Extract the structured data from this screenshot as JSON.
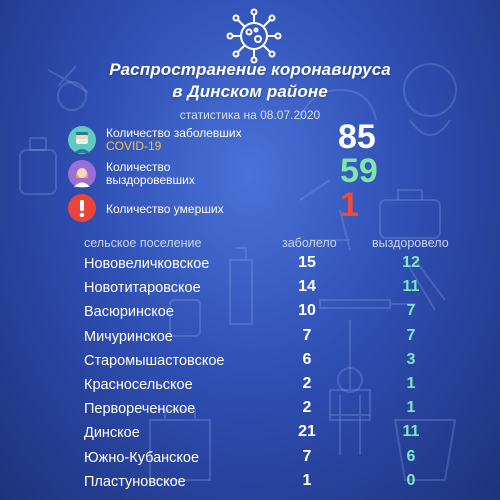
{
  "header": {
    "title_line1": "Распространение коронавируса",
    "title_line2": "в Динском районе",
    "subtitle": "статистика на 08.07.2020"
  },
  "stats": [
    {
      "icon": "doctor-mask-icon",
      "label": "Количество заболевших",
      "sublabel": "COVID-19",
      "value": "85",
      "color": "#ffffff"
    },
    {
      "icon": "recovered-person-icon",
      "label_line1": "Количество",
      "label_line2": "выздоровевших",
      "value": "59",
      "color": "#7ee8a4"
    },
    {
      "icon": "exclamation-icon",
      "label": "Количество умерших",
      "value": "1",
      "color": "#ef4a3c"
    }
  ],
  "table": {
    "headers": {
      "settlement": "сельское поселение",
      "cases": "заболело",
      "recovered": "выздоровело"
    },
    "rows": [
      {
        "name": "Нововеличковское",
        "cases": "15",
        "recovered": "12"
      },
      {
        "name": "Новотитаровское",
        "cases": "14",
        "recovered": "11"
      },
      {
        "name": "Васюринское",
        "cases": "10",
        "recovered": "7"
      },
      {
        "name": "Мичуринское",
        "cases": "7",
        "recovered": "7"
      },
      {
        "name": "Старомышастовское",
        "cases": "6",
        "recovered": "3"
      },
      {
        "name": "Красносельское",
        "cases": "2",
        "recovered": "1"
      },
      {
        "name": "Первореченское",
        "cases": "2",
        "recovered": "1"
      },
      {
        "name": "Динское",
        "cases": "21",
        "recovered": "11"
      },
      {
        "name": "Южно-Кубанское",
        "cases": "7",
        "recovered": "6"
      },
      {
        "name": "Пластуновское",
        "cases": "1",
        "recovered": "0"
      }
    ]
  }
}
